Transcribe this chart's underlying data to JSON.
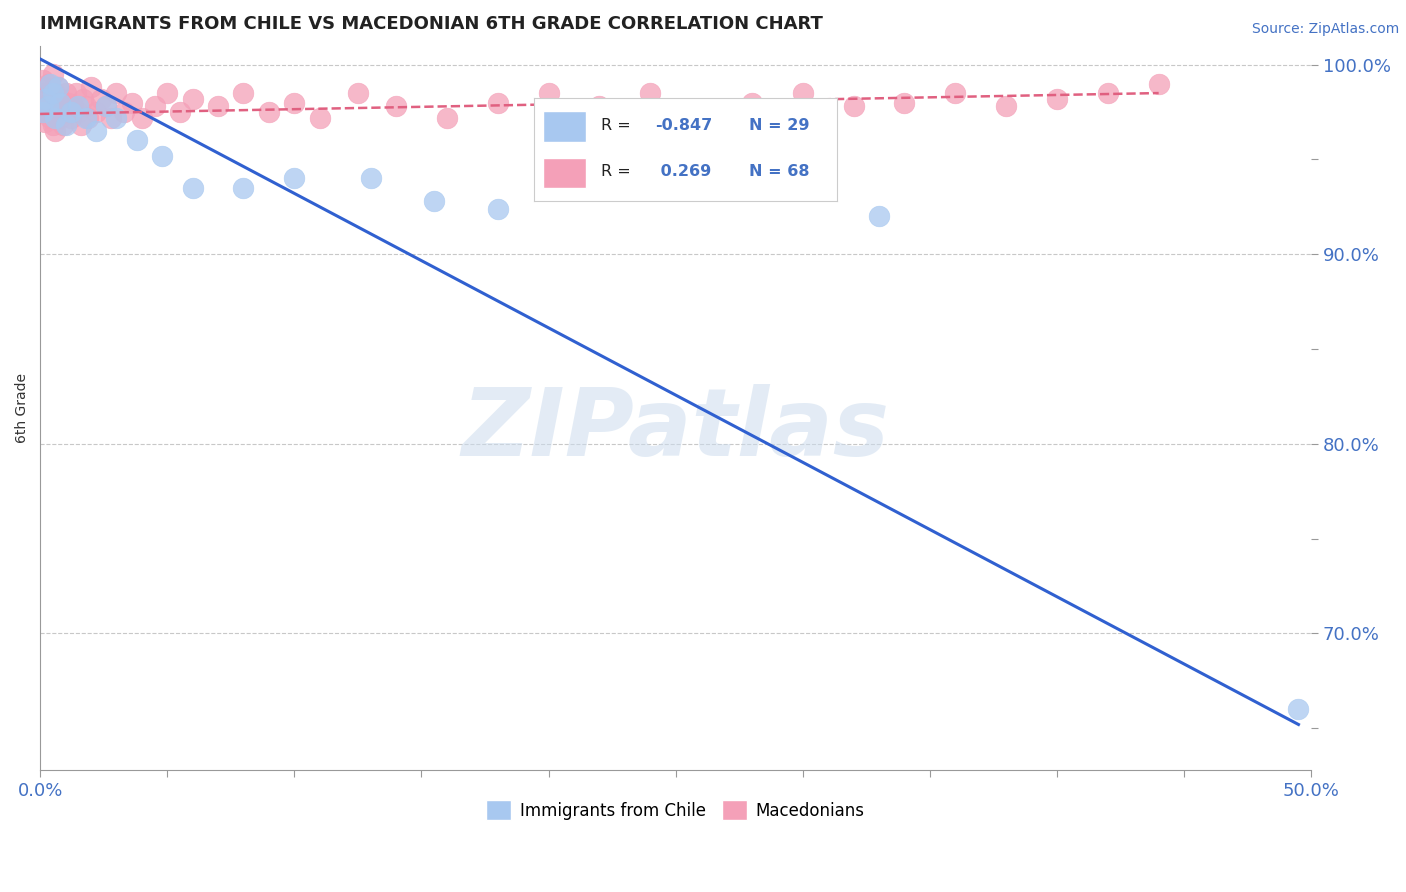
{
  "title": "IMMIGRANTS FROM CHILE VS MACEDONIAN 6TH GRADE CORRELATION CHART",
  "source_text": "Source: ZipAtlas.com",
  "ylabel": "6th Grade",
  "xlim": [
    0.0,
    0.5
  ],
  "ylim": [
    0.628,
    1.01
  ],
  "blue_color": "#a8c8f0",
  "pink_color": "#f4a0b8",
  "blue_line_color": "#3060d0",
  "pink_line_color": "#e06080",
  "blue_scatter_x": [
    0.001,
    0.002,
    0.003,
    0.004,
    0.005,
    0.006,
    0.007,
    0.008,
    0.01,
    0.012,
    0.015,
    0.018,
    0.022,
    0.026,
    0.03,
    0.038,
    0.048,
    0.06,
    0.08,
    0.1,
    0.13,
    0.155,
    0.18,
    0.21,
    0.21,
    0.33,
    0.495
  ],
  "blue_scatter_y": [
    0.975,
    0.982,
    0.978,
    0.99,
    0.985,
    0.972,
    0.988,
    0.98,
    0.968,
    0.975,
    0.978,
    0.972,
    0.965,
    0.978,
    0.972,
    0.96,
    0.952,
    0.935,
    0.935,
    0.94,
    0.94,
    0.928,
    0.924,
    0.94,
    0.955,
    0.92,
    0.66
  ],
  "pink_scatter_x": [
    0.001,
    0.001,
    0.001,
    0.002,
    0.002,
    0.002,
    0.003,
    0.003,
    0.003,
    0.004,
    0.004,
    0.005,
    0.005,
    0.005,
    0.006,
    0.006,
    0.007,
    0.007,
    0.008,
    0.008,
    0.009,
    0.009,
    0.01,
    0.01,
    0.011,
    0.012,
    0.013,
    0.014,
    0.015,
    0.016,
    0.017,
    0.018,
    0.019,
    0.02,
    0.022,
    0.024,
    0.026,
    0.028,
    0.03,
    0.033,
    0.036,
    0.04,
    0.045,
    0.05,
    0.055,
    0.06,
    0.07,
    0.08,
    0.09,
    0.1,
    0.11,
    0.125,
    0.14,
    0.16,
    0.18,
    0.2,
    0.22,
    0.24,
    0.26,
    0.28,
    0.3,
    0.32,
    0.34,
    0.36,
    0.38,
    0.4,
    0.42,
    0.44
  ],
  "pink_scatter_y": [
    0.985,
    0.975,
    0.992,
    0.978,
    0.97,
    0.988,
    0.982,
    0.975,
    0.99,
    0.98,
    0.972,
    0.995,
    0.978,
    0.968,
    0.985,
    0.965,
    0.975,
    0.988,
    0.972,
    0.982,
    0.978,
    0.968,
    0.975,
    0.985,
    0.98,
    0.972,
    0.978,
    0.985,
    0.975,
    0.968,
    0.982,
    0.978,
    0.972,
    0.988,
    0.975,
    0.982,
    0.978,
    0.972,
    0.985,
    0.975,
    0.98,
    0.972,
    0.978,
    0.985,
    0.975,
    0.982,
    0.978,
    0.985,
    0.975,
    0.98,
    0.972,
    0.985,
    0.978,
    0.972,
    0.98,
    0.985,
    0.978,
    0.985,
    0.975,
    0.98,
    0.985,
    0.978,
    0.98,
    0.985,
    0.978,
    0.982,
    0.985,
    0.99
  ],
  "watermark": "ZIPatlas",
  "blue_trend_x": [
    0.0,
    0.495
  ],
  "blue_trend_y": [
    1.003,
    0.652
  ],
  "pink_trend_x": [
    0.0,
    0.44
  ],
  "pink_trend_y": [
    0.974,
    0.985
  ]
}
